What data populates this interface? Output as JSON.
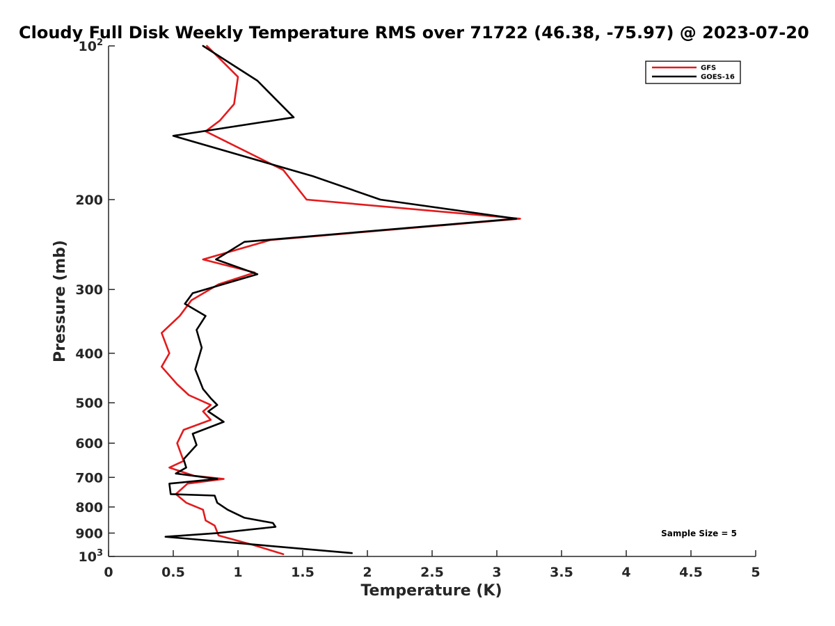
{
  "chart_data": {
    "type": "line",
    "title": "Cloudy Full Disk Weekly Temperature RMS over 71722 (46.38, -75.97) @ 2023-07-20",
    "xlabel": "Temperature (K)",
    "ylabel": "Pressure (mb)",
    "xlim": [
      0,
      5
    ],
    "ylim": [
      1000,
      100
    ],
    "yscale": "log",
    "y_reversed": true,
    "grid": false,
    "legend_position": "top-right",
    "x_ticks": [
      "0",
      "0.5",
      "1",
      "1.5",
      "2",
      "2.5",
      "3",
      "3.5",
      "4",
      "4.5",
      "5"
    ],
    "y_ticks": [
      {
        "value": 100,
        "base": "10",
        "exp": "2"
      },
      {
        "value": 200,
        "label": "200"
      },
      {
        "value": 300,
        "label": "300"
      },
      {
        "value": 400,
        "label": "400"
      },
      {
        "value": 500,
        "label": "500"
      },
      {
        "value": 600,
        "label": "600"
      },
      {
        "value": 700,
        "label": "700"
      },
      {
        "value": 800,
        "label": "800"
      },
      {
        "value": 900,
        "label": "900"
      },
      {
        "value": 1000,
        "base": "10",
        "exp": "3"
      }
    ],
    "annotation": "Sample Size = 5",
    "series": [
      {
        "name": "GFS",
        "color": "#e31a1c",
        "points": [
          [
            0.76,
            100
          ],
          [
            1.0,
            115
          ],
          [
            0.97,
            130
          ],
          [
            0.86,
            140
          ],
          [
            0.75,
            147
          ],
          [
            1.35,
            175
          ],
          [
            1.53,
            200
          ],
          [
            3.18,
            218
          ],
          [
            1.25,
            240
          ],
          [
            0.73,
            262
          ],
          [
            1.13,
            278
          ],
          [
            0.85,
            293
          ],
          [
            0.64,
            315
          ],
          [
            0.55,
            338
          ],
          [
            0.41,
            365
          ],
          [
            0.47,
            400
          ],
          [
            0.41,
            425
          ],
          [
            0.53,
            460
          ],
          [
            0.62,
            483
          ],
          [
            0.79,
            505
          ],
          [
            0.73,
            520
          ],
          [
            0.79,
            540
          ],
          [
            0.58,
            565
          ],
          [
            0.53,
            600
          ],
          [
            0.58,
            650
          ],
          [
            0.47,
            670
          ],
          [
            0.66,
            695
          ],
          [
            0.89,
            705
          ],
          [
            0.61,
            720
          ],
          [
            0.52,
            755
          ],
          [
            0.6,
            785
          ],
          [
            0.73,
            810
          ],
          [
            0.75,
            850
          ],
          [
            0.82,
            870
          ],
          [
            0.85,
            910
          ],
          [
            1.12,
            950
          ],
          [
            1.35,
            990
          ]
        ]
      },
      {
        "name": "GOES-16",
        "color": "#000000",
        "points": [
          [
            0.73,
            100
          ],
          [
            1.15,
            117
          ],
          [
            1.43,
            138
          ],
          [
            0.5,
            150
          ],
          [
            1.58,
            180
          ],
          [
            2.1,
            200
          ],
          [
            3.15,
            218
          ],
          [
            1.05,
            242
          ],
          [
            0.83,
            262
          ],
          [
            1.15,
            280
          ],
          [
            0.65,
            305
          ],
          [
            0.59,
            320
          ],
          [
            0.75,
            338
          ],
          [
            0.68,
            360
          ],
          [
            0.72,
            390
          ],
          [
            0.67,
            430
          ],
          [
            0.73,
            470
          ],
          [
            0.79,
            490
          ],
          [
            0.84,
            505
          ],
          [
            0.77,
            520
          ],
          [
            0.89,
            545
          ],
          [
            0.65,
            575
          ],
          [
            0.68,
            605
          ],
          [
            0.58,
            645
          ],
          [
            0.6,
            670
          ],
          [
            0.52,
            688
          ],
          [
            0.84,
            705
          ],
          [
            0.47,
            720
          ],
          [
            0.48,
            755
          ],
          [
            0.82,
            760
          ],
          [
            0.84,
            785
          ],
          [
            0.92,
            810
          ],
          [
            1.05,
            840
          ],
          [
            1.27,
            860
          ],
          [
            1.29,
            875
          ],
          [
            0.84,
            900
          ],
          [
            0.44,
            915
          ],
          [
            1.88,
            985
          ]
        ]
      }
    ]
  }
}
